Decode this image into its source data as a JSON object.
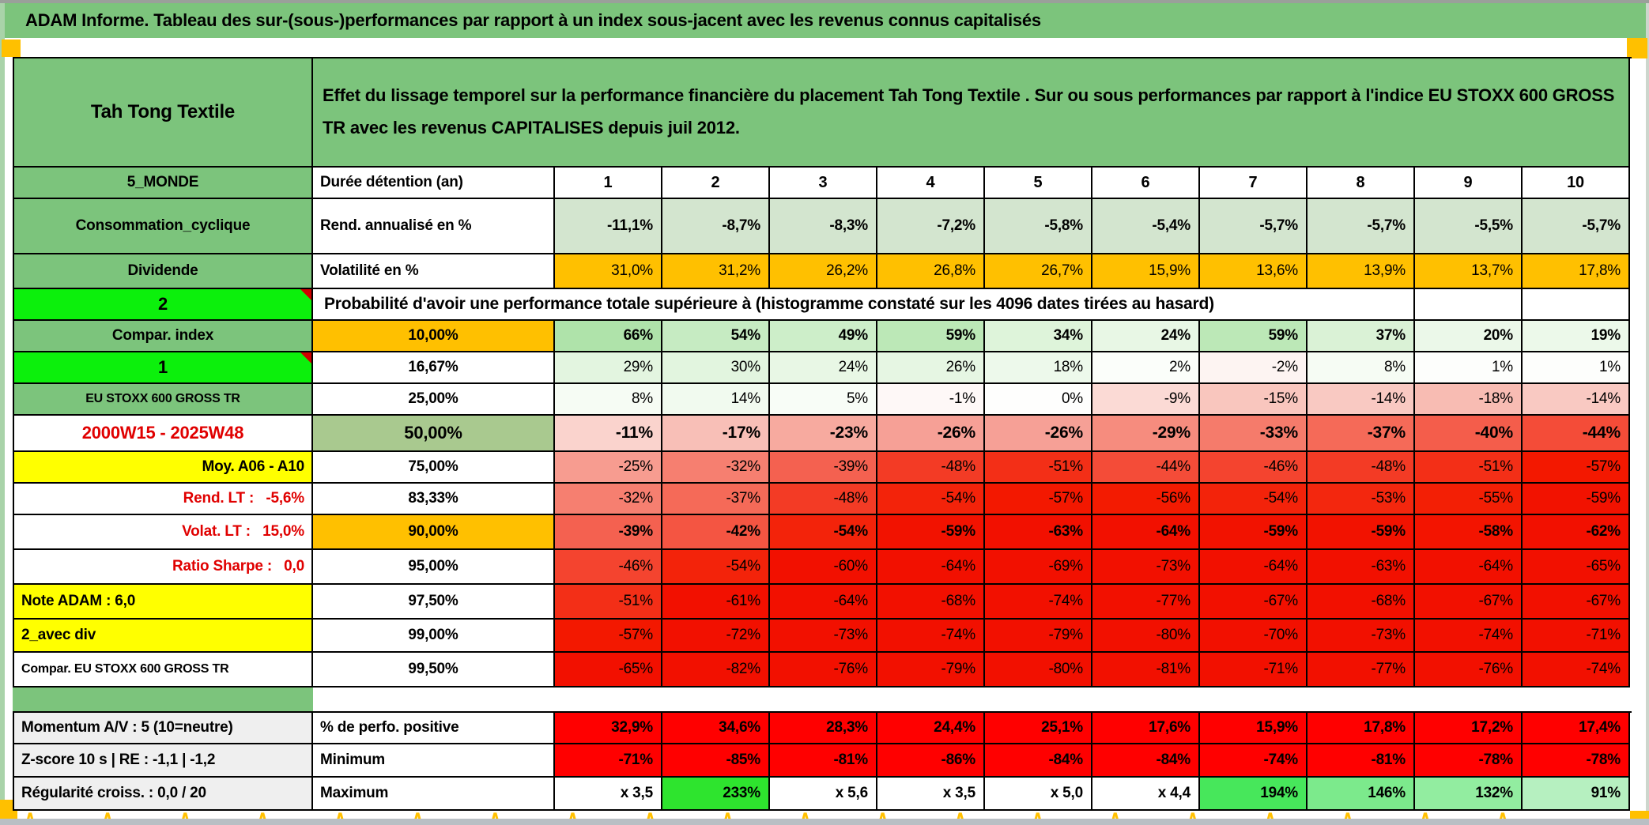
{
  "page": {
    "title": "ADAM Informe. Tableau des sur-(sous-)performances par rapport à un index sous-jacent avec les revenus connus capitalisés",
    "colors": {
      "header_green": "#7cc47c",
      "bright_green": "#0cf00c",
      "orange": "#ffc000",
      "yellow": "#ffff00",
      "sage": "#a9c98f",
      "light_green_row": "#d3e5cf",
      "stat_red": "#ff0000",
      "deep_red": "#f21000",
      "gray_label": "#efefef",
      "max_green": "#2ee42e"
    }
  },
  "header": {
    "asset_name": "Tah Tong Textile",
    "description": "Effet du lissage temporel sur la performance financière du placement Tah Tong Textile . Sur ou sous performances par rapport à l'indice EU STOXX 600 GROSS TR avec les revenus CAPITALISES depuis juil 2012."
  },
  "table": {
    "rows": [
      {
        "name": "row-header",
        "type": "header"
      },
      {
        "name": "row-duration",
        "type": "duration",
        "a": "5_MONDE",
        "a_class": "a-green ac b",
        "b": "Durée détention (an)",
        "b_class": "al b",
        "values": [
          "1",
          "2",
          "3",
          "4",
          "5",
          "6",
          "7",
          "8",
          "9",
          "10"
        ]
      },
      {
        "name": "row-return",
        "type": "values",
        "a": "Consommation_cyclique",
        "a_class": "a-green ac b",
        "b": "Rend. annualisé en %",
        "b_class": "al b",
        "bold": true,
        "bg": "#d3e5cf",
        "values": [
          "-11,1%",
          "-8,7%",
          "-8,3%",
          "-7,2%",
          "-5,8%",
          "-5,4%",
          "-5,7%",
          "-5,7%",
          "-5,5%",
          "-5,7%"
        ]
      },
      {
        "name": "row-volatility",
        "type": "values",
        "a": "Dividende",
        "a_class": "a-green ac b",
        "b": "Volatilité en %",
        "b_class": "al b",
        "bold": false,
        "bg": "#ffc000",
        "values": [
          "31,0%",
          "31,2%",
          "26,2%",
          "26,8%",
          "26,7%",
          "15,9%",
          "13,6%",
          "13,9%",
          "13,7%",
          "17,8%"
        ]
      },
      {
        "name": "row-prob-header",
        "type": "prob-header",
        "a": "2",
        "a_class": "a-bright ac b big-num",
        "note": true,
        "text": "Probabilité d'avoir une performance totale supérieure à (histogramme constaté sur les 4096 dates tirées au hasard)"
      },
      {
        "name": "row-p10",
        "type": "prob",
        "a": "Compar. index",
        "a_class": "a-green ac b",
        "b": "10,00%",
        "b_class": "ac b bg-orange",
        "bold": true,
        "cells": [
          [
            "66%",
            "#afe3aa"
          ],
          [
            "54%",
            "#c6ebc2"
          ],
          [
            "49%",
            "#cdeec9"
          ],
          [
            "59%",
            "#bce8b7"
          ],
          [
            "34%",
            "#def4da"
          ],
          [
            "24%",
            "#e8f7e5"
          ],
          [
            "59%",
            "#bce8b7"
          ],
          [
            "37%",
            "#daf2d6"
          ],
          [
            "20%",
            "#ebf8e9"
          ],
          [
            "19%",
            "#ecf9ea"
          ]
        ]
      },
      {
        "name": "row-p16",
        "type": "prob",
        "a": "1",
        "a_class": "a-bright ac b big-num",
        "note": true,
        "b": "16,67%",
        "b_class": "ac b",
        "bold": false,
        "cells": [
          [
            "29%",
            "#e3f5e0"
          ],
          [
            "30%",
            "#e2f5df"
          ],
          [
            "24%",
            "#e8f7e5"
          ],
          [
            "26%",
            "#e6f6e3"
          ],
          [
            "18%",
            "#edf9eb"
          ],
          [
            "2%",
            "#fbfefa"
          ],
          [
            "-2%",
            "#fdf4f2"
          ],
          [
            "8%",
            "#f6fcf4"
          ],
          [
            "1%",
            "#fdfefc"
          ],
          [
            "1%",
            "#fdfefc"
          ]
        ]
      },
      {
        "name": "row-p25",
        "type": "prob",
        "a": "EU STOXX 600 GROSS TR",
        "a_class": "a-green ac b small",
        "b": "25,00%",
        "b_class": "ac b",
        "bold": false,
        "cells": [
          [
            "8%",
            "#f6fcf4"
          ],
          [
            "14%",
            "#f1faef"
          ],
          [
            "5%",
            "#f8fdf7"
          ],
          [
            "-1%",
            "#fef8f7"
          ],
          [
            "0%",
            "#fefefd"
          ],
          [
            "-9%",
            "#fbdad5"
          ],
          [
            "-15%",
            "#f9c6be"
          ],
          [
            "-14%",
            "#f9c9c2"
          ],
          [
            "-18%",
            "#f8bcb3"
          ],
          [
            "-14%",
            "#f9c9c2"
          ]
        ]
      },
      {
        "name": "row-p50",
        "type": "prob",
        "a": "2000W15 - 2025W48",
        "a_class": "ac b red-t big",
        "b": "50,00%",
        "b_class": "ac b bg-sage big",
        "bold": true,
        "cells": [
          [
            "-11%",
            "#fad3cd"
          ],
          [
            "-17%",
            "#f8bfb7"
          ],
          [
            "-23%",
            "#f7aa9f"
          ],
          [
            "-26%",
            "#f6a096"
          ],
          [
            "-26%",
            "#f6a096"
          ],
          [
            "-29%",
            "#f68c7e"
          ],
          [
            "-33%",
            "#f57b6b"
          ],
          [
            "-37%",
            "#f56a58"
          ],
          [
            "-40%",
            "#f45d4b"
          ],
          [
            "-44%",
            "#f44c38"
          ]
        ]
      },
      {
        "name": "row-p75",
        "type": "prob",
        "a": "Moy. A06 - A10",
        "a_class": "a-yellow ar b",
        "b": "75,00%",
        "b_class": "ac b",
        "bold": false,
        "cells": [
          [
            "-25%",
            "#f79c90"
          ],
          [
            "-32%",
            "#f67f70"
          ],
          [
            "-39%",
            "#f46150"
          ],
          [
            "-48%",
            "#f33b25"
          ],
          [
            "-51%",
            "#f32f17"
          ],
          [
            "-44%",
            "#f44c38"
          ],
          [
            "-46%",
            "#f4442f"
          ],
          [
            "-48%",
            "#f33b25"
          ],
          [
            "-51%",
            "#f32f17"
          ],
          [
            "-57%",
            "#f31800"
          ]
        ]
      },
      {
        "name": "row-p83",
        "type": "prob",
        "a": "Rend. LT :   -5,6%",
        "a_class": "ar b red-t",
        "b": "83,33%",
        "b_class": "ac b",
        "bold": false,
        "cells": [
          [
            "-32%",
            "#f67f70"
          ],
          [
            "-37%",
            "#f56a58"
          ],
          [
            "-48%",
            "#f33b25"
          ],
          [
            "-54%",
            "#f3230a"
          ],
          [
            "-57%",
            "#f31800"
          ],
          [
            "-56%",
            "#f31b01"
          ],
          [
            "-54%",
            "#f3230a"
          ],
          [
            "-53%",
            "#f3270e"
          ],
          [
            "-55%",
            "#f31f05"
          ],
          [
            "-59%",
            "#f21200"
          ]
        ]
      },
      {
        "name": "row-p90",
        "type": "prob",
        "a": "Volat. LT :   15,0%",
        "a_class": "ar b red-t",
        "b": "90,00%",
        "b_class": "ac b bg-orange",
        "bold": true,
        "cells": [
          [
            "-39%",
            "#f46150"
          ],
          [
            "-42%",
            "#f45542"
          ],
          [
            "-54%",
            "#f3230a"
          ],
          [
            "-59%",
            "#f21200"
          ],
          [
            "-63%",
            "#f21000"
          ],
          [
            "-64%",
            "#f21000"
          ],
          [
            "-59%",
            "#f21200"
          ],
          [
            "-59%",
            "#f21200"
          ],
          [
            "-58%",
            "#f31400"
          ],
          [
            "-62%",
            "#f21000"
          ]
        ]
      },
      {
        "name": "row-p95",
        "type": "prob",
        "a": "Ratio Sharpe :   0,0",
        "a_class": "ar b red-t",
        "b": "95,00%",
        "b_class": "ac b",
        "bold": false,
        "cells": [
          [
            "-46%",
            "#f4442f"
          ],
          [
            "-54%",
            "#f3230a"
          ],
          [
            "-60%",
            "#f21000"
          ],
          [
            "-64%",
            "#f21000"
          ],
          [
            "-69%",
            "#f21000"
          ],
          [
            "-73%",
            "#f21000"
          ],
          [
            "-64%",
            "#f21000"
          ],
          [
            "-63%",
            "#f21000"
          ],
          [
            "-64%",
            "#f21000"
          ],
          [
            "-65%",
            "#f21000"
          ]
        ]
      },
      {
        "name": "row-p97",
        "type": "prob",
        "a": "Note ADAM : 6,0",
        "a_class": "a-yellow al b",
        "b": "97,50%",
        "b_class": "ac b",
        "bold": false,
        "cells": [
          [
            "-51%",
            "#f32f17"
          ],
          [
            "-61%",
            "#f21000"
          ],
          [
            "-64%",
            "#f21000"
          ],
          [
            "-68%",
            "#f21000"
          ],
          [
            "-74%",
            "#f21000"
          ],
          [
            "-77%",
            "#f21000"
          ],
          [
            "-67%",
            "#f21000"
          ],
          [
            "-68%",
            "#f21000"
          ],
          [
            "-67%",
            "#f21000"
          ],
          [
            "-67%",
            "#f21000"
          ]
        ]
      },
      {
        "name": "row-p99",
        "type": "prob",
        "a": "2_avec div",
        "a_class": "a-yellow al b",
        "b": "99,00%",
        "b_class": "ac b",
        "bold": false,
        "cells": [
          [
            "-57%",
            "#f31800"
          ],
          [
            "-72%",
            "#f21000"
          ],
          [
            "-73%",
            "#f21000"
          ],
          [
            "-74%",
            "#f21000"
          ],
          [
            "-79%",
            "#f21000"
          ],
          [
            "-80%",
            "#f21000"
          ],
          [
            "-70%",
            "#f21000"
          ],
          [
            "-73%",
            "#f21000"
          ],
          [
            "-74%",
            "#f21000"
          ],
          [
            "-71%",
            "#f21000"
          ]
        ]
      },
      {
        "name": "row-p995",
        "type": "prob",
        "a": "Compar. EU STOXX 600 GROSS TR",
        "a_class": "al b small",
        "b": "99,50%",
        "b_class": "ac b",
        "bold": false,
        "cells": [
          [
            "-65%",
            "#f21000"
          ],
          [
            "-82%",
            "#f21000"
          ],
          [
            "-76%",
            "#f21000"
          ],
          [
            "-79%",
            "#f21000"
          ],
          [
            "-80%",
            "#f21000"
          ],
          [
            "-81%",
            "#f21000"
          ],
          [
            "-71%",
            "#f21000"
          ],
          [
            "-77%",
            "#f21000"
          ],
          [
            "-76%",
            "#f21000"
          ],
          [
            "-74%",
            "#f21000"
          ]
        ]
      },
      {
        "name": "row-sep",
        "type": "sep"
      },
      {
        "name": "row-momentum",
        "type": "stats",
        "a": "Momentum A/V : 5 (10=neutre)",
        "a_class": "a-gray al b",
        "b": "% de perfo. positive",
        "b_class": "al b",
        "bold": true,
        "cells": [
          [
            "32,9%",
            "#ff0000"
          ],
          [
            "34,6%",
            "#ff0000"
          ],
          [
            "28,3%",
            "#ff0000"
          ],
          [
            "24,4%",
            "#ff0000"
          ],
          [
            "25,1%",
            "#ff0000"
          ],
          [
            "17,6%",
            "#ff0000"
          ],
          [
            "15,9%",
            "#ff0000"
          ],
          [
            "17,8%",
            "#ff0000"
          ],
          [
            "17,2%",
            "#ff0000"
          ],
          [
            "17,4%",
            "#ff0000"
          ]
        ]
      },
      {
        "name": "row-zscore",
        "type": "stats",
        "a": "Z-score 10 s | RE : -1,1 | -1,2",
        "a_class": "a-gray al b",
        "b": "Minimum",
        "b_class": "al b",
        "bold": true,
        "cells": [
          [
            "-71%",
            "#ff0000"
          ],
          [
            "-85%",
            "#ff0000"
          ],
          [
            "-81%",
            "#ff0000"
          ],
          [
            "-86%",
            "#ff0000"
          ],
          [
            "-84%",
            "#ff0000"
          ],
          [
            "-84%",
            "#ff0000"
          ],
          [
            "-74%",
            "#ff0000"
          ],
          [
            "-81%",
            "#ff0000"
          ],
          [
            "-78%",
            "#ff0000"
          ],
          [
            "-78%",
            "#ff0000"
          ]
        ]
      },
      {
        "name": "row-regularity",
        "type": "stats",
        "a": "Régularité croiss. : 0,0 / 20",
        "a_class": "a-gray al b",
        "b": "Maximum",
        "b_class": "al b",
        "bold": true,
        "cells": [
          [
            "x 3,5",
            "#ffffff"
          ],
          [
            "233%",
            "#2ee42e"
          ],
          [
            "x 5,6",
            "#ffffff"
          ],
          [
            "x 3,5",
            "#ffffff"
          ],
          [
            "x 5,0",
            "#ffffff"
          ],
          [
            "x 4,4",
            "#ffffff"
          ],
          [
            "194%",
            "#47e75b"
          ],
          [
            "146%",
            "#7cea8c"
          ],
          [
            "132%",
            "#92eda0"
          ],
          [
            "91%",
            "#b6f0c0"
          ]
        ]
      }
    ]
  }
}
